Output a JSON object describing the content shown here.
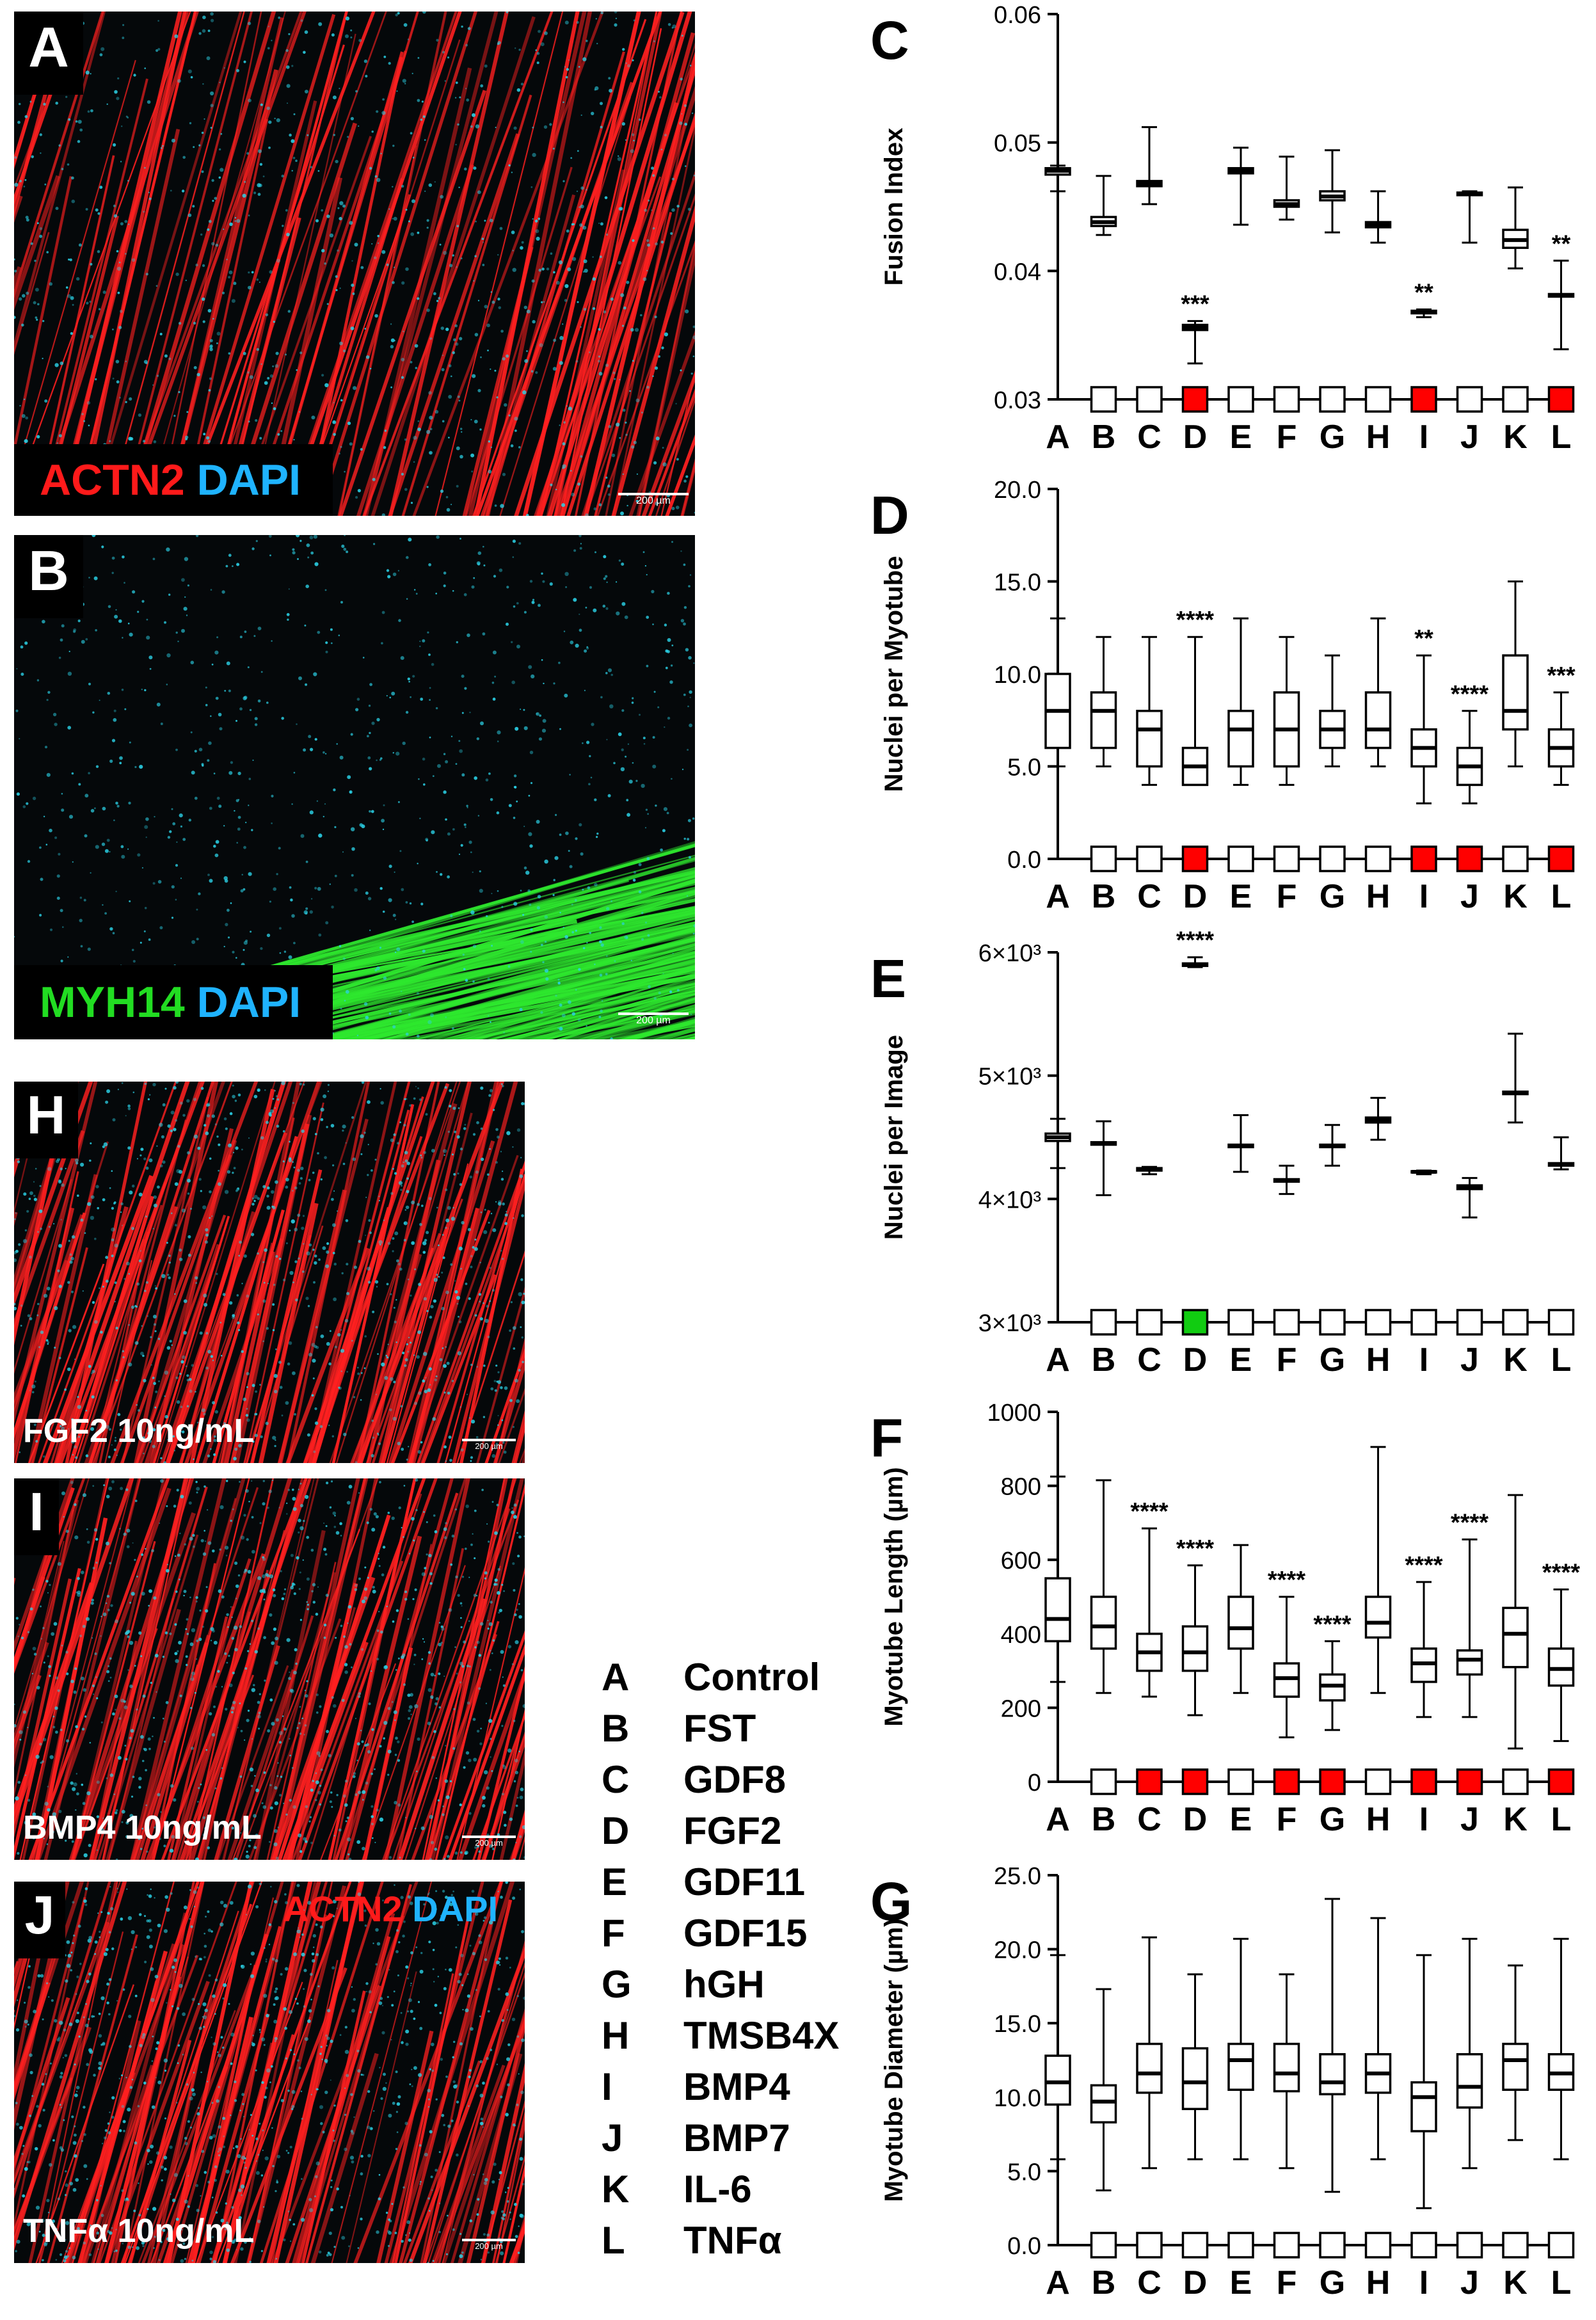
{
  "micrographs": [
    {
      "id": "A",
      "label": "A",
      "stains": [
        {
          "text": "ACTN2",
          "color": "#ff1a1a"
        },
        {
          "text": "DAPI",
          "color": "#1fb3ff"
        }
      ],
      "scalebar": "200 µm",
      "fibers": "red"
    },
    {
      "id": "B",
      "label": "B",
      "stains": [
        {
          "text": "MYH14",
          "color": "#22dd22"
        },
        {
          "text": "DAPI",
          "color": "#1fb3ff"
        }
      ],
      "scalebar": "200 µm",
      "fibers": "green"
    },
    {
      "id": "H",
      "label": "H",
      "caption": "FGF2 10ng/mL",
      "scalebar": "200 µm",
      "fibers": "red"
    },
    {
      "id": "I",
      "label": "I",
      "caption": "BMP4 10ng/mL",
      "scalebar": "200 µm",
      "fibers": "red"
    },
    {
      "id": "J",
      "label": "J",
      "stains": [
        {
          "text": "ACTN2",
          "color": "#ff1a1a"
        },
        {
          "text": "DAPI",
          "color": "#1fb3ff"
        }
      ],
      "caption": "TNFα 10ng/mL",
      "scalebar": "200 µm",
      "fibers": "red"
    }
  ],
  "legend": [
    {
      "key": "A",
      "name": "Control"
    },
    {
      "key": "B",
      "name": "FST"
    },
    {
      "key": "C",
      "name": "GDF8"
    },
    {
      "key": "D",
      "name": "FGF2"
    },
    {
      "key": "E",
      "name": "GDF11"
    },
    {
      "key": "F",
      "name": "GDF15"
    },
    {
      "key": "G",
      "name": "hGH"
    },
    {
      "key": "H",
      "name": "TMSB4X"
    },
    {
      "key": "I",
      "name": "BMP4"
    },
    {
      "key": "J",
      "name": "BMP7"
    },
    {
      "key": "K",
      "name": "IL-6"
    },
    {
      "key": "L",
      "name": "TNFα"
    }
  ],
  "colors": {
    "significant_down": "#ff0000",
    "significant_up": "#11cc11",
    "neutral": "#ffffff"
  },
  "chart_data": [
    {
      "panel": "C",
      "type": "box",
      "ylabel": "Fusion Index",
      "categories": [
        "A",
        "B",
        "C",
        "D",
        "E",
        "F",
        "G",
        "H",
        "I",
        "J",
        "K",
        "L"
      ],
      "ylim": [
        0.03,
        0.06
      ],
      "yticks": [
        {
          "v": 0.03,
          "t": "0.03"
        },
        {
          "v": 0.04,
          "t": "0.04"
        },
        {
          "v": 0.05,
          "t": "0.05"
        },
        {
          "v": 0.06,
          "t": "0.06"
        }
      ],
      "boxes": [
        {
          "min": 0.0462,
          "q1": 0.0475,
          "med": 0.0478,
          "q3": 0.048,
          "max": 0.0482
        },
        {
          "min": 0.0428,
          "q1": 0.0435,
          "med": 0.0438,
          "q3": 0.0442,
          "max": 0.0474
        },
        {
          "min": 0.0452,
          "q1": 0.0466,
          "med": 0.0468,
          "q3": 0.047,
          "max": 0.0512
        },
        {
          "min": 0.0328,
          "q1": 0.0354,
          "med": 0.0356,
          "q3": 0.0358,
          "max": 0.0361
        },
        {
          "min": 0.0436,
          "q1": 0.0476,
          "med": 0.0478,
          "q3": 0.048,
          "max": 0.0496
        },
        {
          "min": 0.044,
          "q1": 0.045,
          "med": 0.0452,
          "q3": 0.0455,
          "max": 0.0489
        },
        {
          "min": 0.043,
          "q1": 0.0455,
          "med": 0.0458,
          "q3": 0.0462,
          "max": 0.0494
        },
        {
          "min": 0.0422,
          "q1": 0.0434,
          "med": 0.0436,
          "q3": 0.0438,
          "max": 0.0462
        },
        {
          "min": 0.0364,
          "q1": 0.0367,
          "med": 0.0368,
          "q3": 0.0369,
          "max": 0.037
        },
        {
          "min": 0.0422,
          "q1": 0.0459,
          "med": 0.046,
          "q3": 0.0461,
          "max": 0.0462
        },
        {
          "min": 0.0402,
          "q1": 0.0418,
          "med": 0.0424,
          "q3": 0.0432,
          "max": 0.0465
        },
        {
          "min": 0.0339,
          "q1": 0.038,
          "med": 0.0381,
          "q3": 0.0382,
          "max": 0.0408
        }
      ],
      "stars": [
        "",
        "",
        "",
        "***",
        "",
        "",
        "",
        "",
        "**",
        "",
        "",
        "**"
      ],
      "markers": [
        "none",
        "white",
        "white",
        "red",
        "white",
        "white",
        "white",
        "white",
        "red",
        "white",
        "white",
        "red"
      ]
    },
    {
      "panel": "D",
      "type": "box",
      "ylabel": "Nuclei per Myotube",
      "categories": [
        "A",
        "B",
        "C",
        "D",
        "E",
        "F",
        "G",
        "H",
        "I",
        "J",
        "K",
        "L"
      ],
      "ylim": [
        0,
        20
      ],
      "yticks": [
        {
          "v": 0,
          "t": "0.0"
        },
        {
          "v": 5,
          "t": "5.0"
        },
        {
          "v": 10,
          "t": "10.0"
        },
        {
          "v": 15,
          "t": "15.0"
        },
        {
          "v": 20,
          "t": "20.0"
        }
      ],
      "boxes": [
        {
          "min": 5,
          "q1": 6,
          "med": 8,
          "q3": 10,
          "max": 13
        },
        {
          "min": 5,
          "q1": 6,
          "med": 8,
          "q3": 9,
          "max": 12
        },
        {
          "min": 4,
          "q1": 5,
          "med": 7,
          "q3": 8,
          "max": 12
        },
        {
          "min": 4,
          "q1": 4,
          "med": 5,
          "q3": 6,
          "max": 12
        },
        {
          "min": 4,
          "q1": 5,
          "med": 7,
          "q3": 8,
          "max": 13
        },
        {
          "min": 4,
          "q1": 5,
          "med": 7,
          "q3": 9,
          "max": 12
        },
        {
          "min": 5,
          "q1": 6,
          "med": 7,
          "q3": 8,
          "max": 11
        },
        {
          "min": 5,
          "q1": 6,
          "med": 7,
          "q3": 9,
          "max": 13
        },
        {
          "min": 3,
          "q1": 5,
          "med": 6,
          "q3": 7,
          "max": 11
        },
        {
          "min": 3,
          "q1": 4,
          "med": 5,
          "q3": 6,
          "max": 8
        },
        {
          "min": 5,
          "q1": 7,
          "med": 8,
          "q3": 11,
          "max": 15
        },
        {
          "min": 4,
          "q1": 5,
          "med": 6,
          "q3": 7,
          "max": 9
        }
      ],
      "stars": [
        "",
        "",
        "",
        "****",
        "",
        "",
        "",
        "",
        "**",
        "****",
        "",
        "***"
      ],
      "markers": [
        "none",
        "white",
        "white",
        "red",
        "white",
        "white",
        "white",
        "white",
        "red",
        "red",
        "white",
        "red"
      ]
    },
    {
      "panel": "E",
      "type": "box",
      "ylabel": "Nuclei per Image",
      "categories": [
        "A",
        "B",
        "C",
        "D",
        "E",
        "F",
        "G",
        "H",
        "I",
        "J",
        "K",
        "L"
      ],
      "ylim": [
        3000,
        6000
      ],
      "yticks": [
        {
          "v": 3000,
          "t": "3×10³"
        },
        {
          "v": 4000,
          "t": "4×10³"
        },
        {
          "v": 5000,
          "t": "5×10³"
        },
        {
          "v": 6000,
          "t": "6×10³"
        }
      ],
      "boxes": [
        {
          "min": 4250,
          "q1": 4470,
          "med": 4500,
          "q3": 4530,
          "max": 4650
        },
        {
          "min": 4030,
          "q1": 4440,
          "med": 4450,
          "q3": 4460,
          "max": 4630
        },
        {
          "min": 4200,
          "q1": 4230,
          "med": 4240,
          "q3": 4250,
          "max": 4260
        },
        {
          "min": 5880,
          "q1": 5890,
          "med": 5900,
          "q3": 5910,
          "max": 5960
        },
        {
          "min": 4220,
          "q1": 4420,
          "med": 4430,
          "q3": 4440,
          "max": 4680
        },
        {
          "min": 4040,
          "q1": 4140,
          "med": 4150,
          "q3": 4160,
          "max": 4270
        },
        {
          "min": 4270,
          "q1": 4420,
          "med": 4430,
          "q3": 4440,
          "max": 4600
        },
        {
          "min": 4480,
          "q1": 4620,
          "med": 4640,
          "q3": 4660,
          "max": 4820
        },
        {
          "min": 4200,
          "q1": 4215,
          "med": 4220,
          "q3": 4225,
          "max": 4230
        },
        {
          "min": 3850,
          "q1": 4080,
          "med": 4100,
          "q3": 4110,
          "max": 4170
        },
        {
          "min": 4620,
          "q1": 4850,
          "med": 4860,
          "q3": 4870,
          "max": 5340
        },
        {
          "min": 4240,
          "q1": 4270,
          "med": 4280,
          "q3": 4290,
          "max": 4500
        }
      ],
      "stars": [
        "",
        "",
        "",
        "****",
        "",
        "",
        "",
        "",
        "",
        "",
        "",
        ""
      ],
      "markers": [
        "none",
        "white",
        "white",
        "green",
        "white",
        "white",
        "white",
        "white",
        "white",
        "white",
        "white",
        "white"
      ]
    },
    {
      "panel": "F",
      "type": "box",
      "ylabel": "Myotube Length (µm)",
      "categories": [
        "A",
        "B",
        "C",
        "D",
        "E",
        "F",
        "G",
        "H",
        "I",
        "J",
        "K",
        "L"
      ],
      "ylim": [
        0,
        1000
      ],
      "yticks": [
        {
          "v": 0,
          "t": "0"
        },
        {
          "v": 200,
          "t": "200"
        },
        {
          "v": 400,
          "t": "400"
        },
        {
          "v": 600,
          "t": "600"
        },
        {
          "v": 800,
          "t": "800"
        },
        {
          "v": 1000,
          "t": "1000"
        }
      ],
      "boxes": [
        {
          "min": 270,
          "q1": 380,
          "med": 440,
          "q3": 550,
          "max": 825
        },
        {
          "min": 240,
          "q1": 360,
          "med": 420,
          "q3": 500,
          "max": 815
        },
        {
          "min": 230,
          "q1": 300,
          "med": 350,
          "q3": 400,
          "max": 685
        },
        {
          "min": 180,
          "q1": 300,
          "med": 350,
          "q3": 420,
          "max": 585
        },
        {
          "min": 240,
          "q1": 360,
          "med": 415,
          "q3": 500,
          "max": 640
        },
        {
          "min": 120,
          "q1": 230,
          "med": 280,
          "q3": 320,
          "max": 500
        },
        {
          "min": 140,
          "q1": 220,
          "med": 260,
          "q3": 290,
          "max": 380
        },
        {
          "min": 240,
          "q1": 390,
          "med": 430,
          "q3": 500,
          "max": 905
        },
        {
          "min": 175,
          "q1": 270,
          "med": 320,
          "q3": 360,
          "max": 540
        },
        {
          "min": 175,
          "q1": 290,
          "med": 330,
          "q3": 355,
          "max": 655
        },
        {
          "min": 90,
          "q1": 310,
          "med": 400,
          "q3": 470,
          "max": 775
        },
        {
          "min": 110,
          "q1": 260,
          "med": 305,
          "q3": 360,
          "max": 520
        }
      ],
      "stars": [
        "",
        "",
        "****",
        "****",
        "",
        "****",
        "****",
        "",
        "****",
        "****",
        "",
        "****"
      ],
      "markers": [
        "none",
        "white",
        "red",
        "red",
        "white",
        "red",
        "red",
        "white",
        "red",
        "red",
        "white",
        "red"
      ]
    },
    {
      "panel": "G",
      "type": "box",
      "ylabel": "Myotube Diameter (µm)",
      "categories": [
        "A",
        "B",
        "C",
        "D",
        "E",
        "F",
        "G",
        "H",
        "I",
        "J",
        "K",
        "L"
      ],
      "ylim": [
        0,
        25
      ],
      "yticks": [
        {
          "v": 0,
          "t": "0.0"
        },
        {
          "v": 5,
          "t": "5.0"
        },
        {
          "v": 10,
          "t": "10.0"
        },
        {
          "v": 15,
          "t": "15.0"
        },
        {
          "v": 20,
          "t": "20.0"
        },
        {
          "v": 25,
          "t": "25.0"
        }
      ],
      "boxes": [
        {
          "min": 5.8,
          "q1": 9.5,
          "med": 11,
          "q3": 12.8,
          "max": 19.6
        },
        {
          "min": 3.7,
          "q1": 8.3,
          "med": 9.7,
          "q3": 10.8,
          "max": 17.3
        },
        {
          "min": 5.2,
          "q1": 10.3,
          "med": 11.6,
          "q3": 13.6,
          "max": 20.8
        },
        {
          "min": 5.8,
          "q1": 9.2,
          "med": 11,
          "q3": 13.3,
          "max": 18.3
        },
        {
          "min": 5.8,
          "q1": 10.5,
          "med": 12.5,
          "q3": 13.6,
          "max": 20.7
        },
        {
          "min": 5.2,
          "q1": 10.4,
          "med": 11.6,
          "q3": 13.6,
          "max": 18.3
        },
        {
          "min": 3.6,
          "q1": 10.2,
          "med": 11,
          "q3": 12.9,
          "max": 23.4
        },
        {
          "min": 5.8,
          "q1": 10.3,
          "med": 11.6,
          "q3": 12.9,
          "max": 22.1
        },
        {
          "min": 2.5,
          "q1": 7.7,
          "med": 10,
          "q3": 11,
          "max": 19.6
        },
        {
          "min": 5.2,
          "q1": 9.3,
          "med": 10.7,
          "q3": 12.9,
          "max": 20.7
        },
        {
          "min": 7.1,
          "q1": 10.5,
          "med": 12.5,
          "q3": 13.6,
          "max": 18.9
        },
        {
          "min": 5.8,
          "q1": 10.5,
          "med": 11.6,
          "q3": 12.9,
          "max": 20.7
        }
      ],
      "stars": [
        "",
        "",
        "",
        "",
        "",
        "",
        "",
        "",
        "",
        "",
        "",
        ""
      ],
      "markers": [
        "none",
        "white",
        "white",
        "white",
        "white",
        "white",
        "white",
        "white",
        "white",
        "white",
        "white",
        "white"
      ]
    }
  ]
}
